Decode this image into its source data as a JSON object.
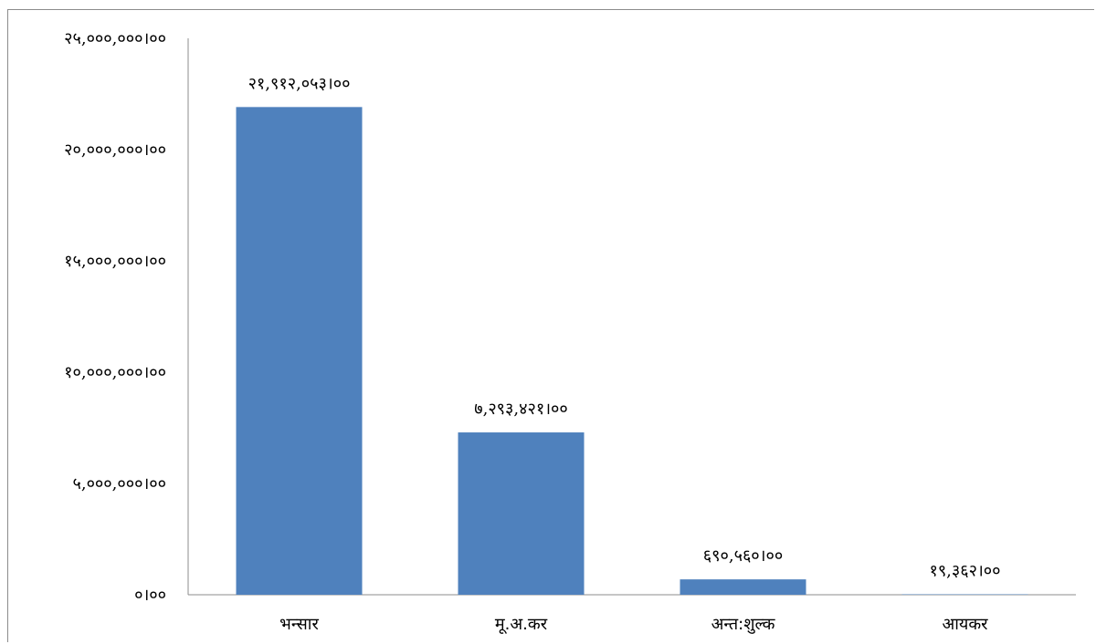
{
  "chart_data": {
    "type": "bar",
    "categories": [
      "भन्सार",
      "मू.अ.कर",
      "अन्त:शुल्क",
      "आयकर"
    ],
    "values": [
      21912053,
      7293421,
      690560,
      19362
    ],
    "data_labels": [
      "२१,९१२,०५३।००",
      "७,२९३,४२१।००",
      "६९०,५६०।००",
      "१९,३६२।००"
    ],
    "y_ticks": [
      0,
      5000000,
      10000000,
      15000000,
      20000000,
      25000000
    ],
    "y_tick_labels": [
      "०।००",
      "५,०००,०००।००",
      "१०,०००,०००।००",
      "१५,०००,०००।००",
      "२०,०००,०००।००",
      "२५,०००,०००।००"
    ],
    "ylim": [
      0,
      25000000
    ],
    "grid": false,
    "legend": "none",
    "title": "",
    "xlabel": "",
    "ylabel": "",
    "bar_color": "#4f81bd",
    "axis_color": "#8c8c8c"
  }
}
